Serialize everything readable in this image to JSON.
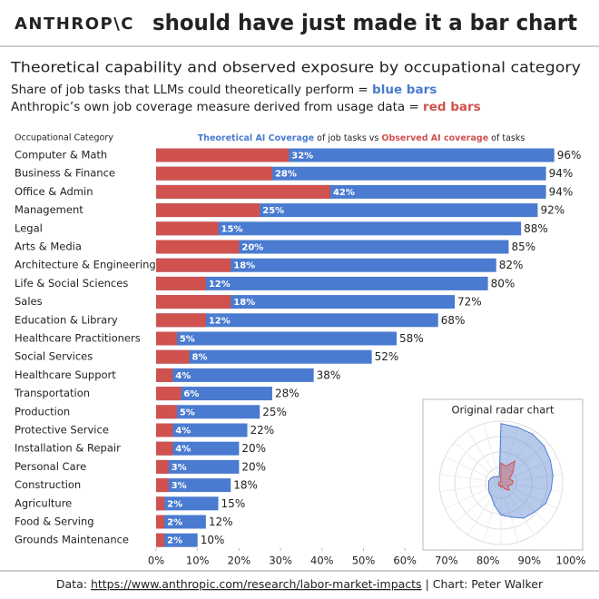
{
  "header": {
    "logo": "ANTHROP\\C",
    "title": "should have just made it a bar chart"
  },
  "chart_data": {
    "type": "bar",
    "title": "Theoretical capability and observed exposure by occupational category",
    "subtitle_lines": [
      [
        "Share of job tasks that LLMs could theoretically perform =",
        "blue bars"
      ],
      [
        "Anthropic’s own job coverage measure derived from usage data =",
        "red bars"
      ]
    ],
    "y_axis_label": "Occupational Category",
    "legend_text": [
      "of job tasks vs",
      "of tasks"
    ],
    "categories": [
      "Computer & Math",
      "Business & Finance",
      "Office & Admin",
      "Management",
      "Legal",
      "Arts & Media",
      "Architecture & Engineering",
      "Life & Social Sciences",
      "Sales",
      "Education & Library",
      "Healthcare Practitioners",
      "Social Services",
      "Healthcare Support",
      "Transportation",
      "Production",
      "Protective Service",
      "Installation & Repair",
      "Personal Care",
      "Construction",
      "Agriculture",
      "Food & Serving",
      "Grounds Maintenance"
    ],
    "series": [
      {
        "name": "Theoretical AI Coverage",
        "color": "#4a7bd0",
        "values": [
          96,
          94,
          94,
          92,
          88,
          85,
          82,
          80,
          72,
          68,
          58,
          52,
          38,
          28,
          25,
          22,
          20,
          20,
          18,
          15,
          12,
          10
        ],
        "value_labels": [
          "96%",
          "94%",
          "94%",
          "92%",
          "88%",
          "85%",
          "82%",
          "80%",
          "72%",
          "68%",
          "58%",
          "52%",
          "38%",
          "28%",
          "25%",
          "22%",
          "20%",
          "20%",
          "18%",
          "15%",
          "12%",
          "10%"
        ]
      },
      {
        "name": "Observed AI coverage",
        "color": "#d0524f",
        "values": [
          32,
          28,
          42,
          25,
          15,
          20,
          18,
          12,
          18,
          12,
          5,
          8,
          4,
          6,
          5,
          4,
          4,
          3,
          3,
          2,
          2,
          2
        ],
        "value_labels": [
          "32%",
          "28%",
          "42%",
          "25%",
          "15%",
          "20%",
          "18%",
          "12%",
          "18%",
          "12%",
          "5%",
          "8%",
          "4%",
          "6%",
          "5%",
          "4%",
          "4%",
          "3%",
          "3%",
          "2%",
          "2%",
          "2%"
        ]
      }
    ],
    "xlim": [
      0,
      100
    ],
    "xticks": [
      {
        "value": 0,
        "label": "0%"
      },
      {
        "value": 10,
        "label": "10%"
      },
      {
        "value": 20,
        "label": "20%"
      },
      {
        "value": 30,
        "label": "30%"
      },
      {
        "value": 40,
        "label": "40%"
      },
      {
        "value": 50,
        "label": "50%"
      },
      {
        "value": 60,
        "label": "60%"
      },
      {
        "value": 70,
        "label": "70%"
      },
      {
        "value": 80,
        "label": "80%"
      },
      {
        "value": 90,
        "label": "90%"
      },
      {
        "value": 100,
        "label": "100%"
      }
    ],
    "inset_title": "Original radar chart"
  },
  "footer": {
    "source_label": "Data:",
    "url": "https://www.anthropic.com/research/labor-market-impacts",
    "credit": "| Chart: Peter Walker"
  }
}
